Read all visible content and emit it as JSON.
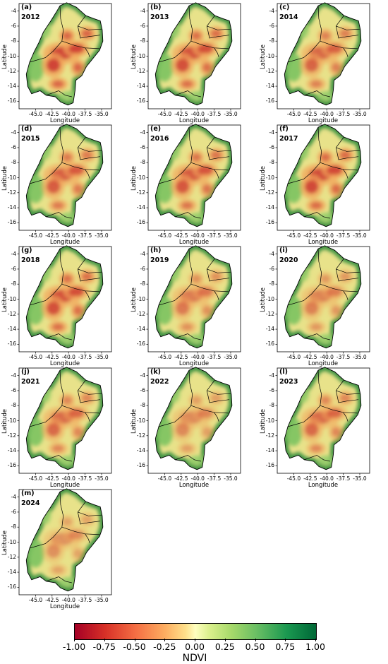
{
  "figure": {
    "x_axis_label": "Longitude",
    "y_axis_label": "Latitude",
    "x_ticks": [
      "-45.0",
      "-42.5",
      "-40.0",
      "-37.5",
      "-35.0"
    ],
    "y_ticks": [
      "-4",
      "-6",
      "-8",
      "-10",
      "-12",
      "-14",
      "-16"
    ],
    "panels": [
      {
        "letter": "(a)",
        "year": "2012"
      },
      {
        "letter": "(b)",
        "year": "2013"
      },
      {
        "letter": "(c)",
        "year": "2014"
      },
      {
        "letter": "(d)",
        "year": "2015"
      },
      {
        "letter": "(e)",
        "year": "2016"
      },
      {
        "letter": "(f)",
        "year": "2017"
      },
      {
        "letter": "(g)",
        "year": "2018"
      },
      {
        "letter": "(h)",
        "year": "2019"
      },
      {
        "letter": "(i)",
        "year": "2020"
      },
      {
        "letter": "(j)",
        "year": "2021"
      },
      {
        "letter": "(k)",
        "year": "2022"
      },
      {
        "letter": "(l)",
        "year": "2023"
      },
      {
        "letter": "(m)",
        "year": "2024"
      }
    ]
  },
  "colorbar": {
    "title": "NDVI",
    "ticks": [
      "-1.00",
      "-0.75",
      "-0.50",
      "-0.25",
      "0.00",
      "0.25",
      "0.50",
      "0.75",
      "1.00"
    ],
    "min": -1.0,
    "max": 1.0,
    "colors": [
      "#a50026",
      "#d73027",
      "#f46d43",
      "#fdae61",
      "#fee08b",
      "#ffffbf",
      "#d9ef8b",
      "#a6d96a",
      "#66bd63",
      "#1a9850",
      "#006837"
    ]
  },
  "map_style": {
    "colormap": "RdYlGn",
    "region_outline_color": "#000000",
    "coast_green": "#2e8b3a",
    "interior_dry_red": "#c8292b"
  }
}
